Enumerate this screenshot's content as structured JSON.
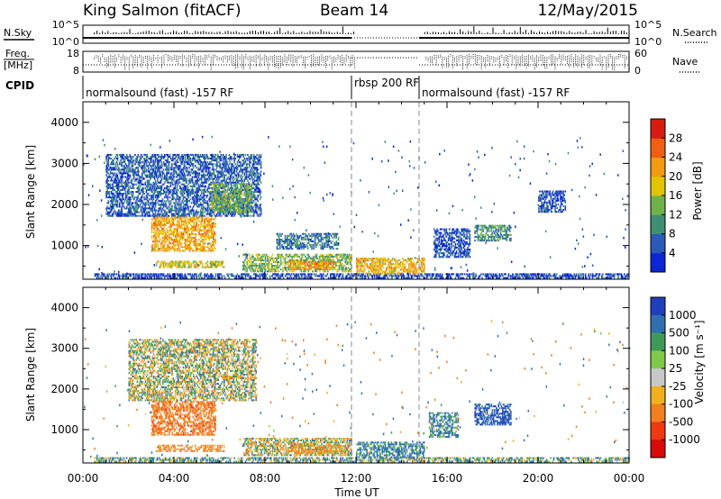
{
  "header": {
    "station": "King Salmon (fitACF)",
    "beam": "Beam 14",
    "date": "12/May/2015"
  },
  "strip_panels": {
    "nsky_label": "N.Sky",
    "nsearch_label": "N.Search",
    "freq_label_1": "Freq.",
    "freq_label_2": "[MHz]",
    "nave_label": "Nave",
    "cpid_label": "CPID",
    "nsky_ticks": [
      "10^5",
      "10^0"
    ],
    "nsearch_ticks": [
      "10^5",
      "10^0"
    ],
    "freq_ticks": [
      "18",
      "8"
    ],
    "nave_ticks": [
      "60",
      "0"
    ],
    "cpid_segments": [
      {
        "label": "normalsound (fast) -157 RF",
        "start_hour": 0,
        "end_hour": 12
      },
      {
        "label": "rbsp 200 RF",
        "start_hour": 12,
        "end_hour": 15
      },
      {
        "label": "normalsound (fast) -157 RF",
        "start_hour": 15,
        "end_hour": 24
      }
    ]
  },
  "colorbars": {
    "power": {
      "label": "Power [dB]",
      "ticks": [
        "4",
        "8",
        "12",
        "16",
        "20",
        "24",
        "28"
      ],
      "colors": [
        "#0b26d6",
        "#2a5bb8",
        "#3e8f73",
        "#6fb24a",
        "#e2c400",
        "#f29a10",
        "#ef5e12",
        "#d61d10"
      ]
    },
    "velocity": {
      "label": "Velocity [m s⁻¹]",
      "ticks": [
        "1000",
        "500",
        "100",
        "25",
        "-25",
        "-100",
        "-500",
        "-1000"
      ],
      "colors": [
        "#1f3fbf",
        "#2f6fb0",
        "#3f9a5a",
        "#7fc84a",
        "#c8c8c8",
        "#f2b020",
        "#f08020",
        "#ee3a10",
        "#d80a0a"
      ]
    }
  },
  "chart_data": [
    {
      "type": "heatmap",
      "title": "",
      "xlabel": "Time UT",
      "ylabel": "Slant Range [km]",
      "xlim": [
        0,
        24
      ],
      "ylim": [
        180,
        4500
      ],
      "x_tick_labels": [
        "00:00",
        "04:00",
        "08:00",
        "12:00",
        "16:00",
        "20:00",
        "00:00"
      ],
      "y_tick_labels": [
        "1000",
        "2000",
        "3000",
        "4000"
      ],
      "value_name": "Power [dB]",
      "value_range": [
        0,
        30
      ],
      "regions": [
        {
          "t": [
            0.5,
            24.0
          ],
          "r": [
            190,
            320
          ],
          "value": 4
        },
        {
          "t": [
            1.0,
            7.8
          ],
          "r": [
            1700,
            3200
          ],
          "value": 6
        },
        {
          "t": [
            5.6,
            7.4
          ],
          "r": [
            1800,
            2500
          ],
          "value": 13
        },
        {
          "t": [
            3.0,
            5.8
          ],
          "r": [
            850,
            1700
          ],
          "value": 21
        },
        {
          "t": [
            3.2,
            6.2
          ],
          "r": [
            450,
            620
          ],
          "value": 18
        },
        {
          "t": [
            7.0,
            11.8
          ],
          "r": [
            350,
            800
          ],
          "value": 14
        },
        {
          "t": [
            8.5,
            11.2
          ],
          "r": [
            900,
            1300
          ],
          "value": 8
        },
        {
          "t": [
            9.0,
            11.0
          ],
          "r": [
            400,
            600
          ],
          "value": 23
        },
        {
          "t": [
            12.0,
            15.0
          ],
          "r": [
            300,
            700
          ],
          "value": 20
        },
        {
          "t": [
            17.2,
            18.8
          ],
          "r": [
            1100,
            1500
          ],
          "value": 10
        },
        {
          "t": [
            15.4,
            17.0
          ],
          "r": [
            700,
            1400
          ],
          "value": 5
        },
        {
          "t": [
            20.0,
            21.2
          ],
          "r": [
            1800,
            2300
          ],
          "value": 5
        }
      ]
    },
    {
      "type": "heatmap",
      "title": "",
      "xlabel": "Time UT",
      "ylabel": "Slant Range [km]",
      "xlim": [
        0,
        24
      ],
      "ylim": [
        180,
        4500
      ],
      "x_tick_labels": [
        "00:00",
        "04:00",
        "08:00",
        "12:00",
        "16:00",
        "20:00",
        "00:00"
      ],
      "y_tick_labels": [
        "1000",
        "2000",
        "3000",
        "4000"
      ],
      "value_name": "Velocity [m s⁻¹]",
      "value_range": [
        -1000,
        1000
      ],
      "regions": [
        {
          "t": [
            0.5,
            24.0
          ],
          "r": [
            190,
            320
          ],
          "value": 60
        },
        {
          "t": [
            2.0,
            7.6
          ],
          "r": [
            1700,
            3200
          ],
          "value": 0
        },
        {
          "t": [
            3.0,
            5.8
          ],
          "r": [
            850,
            1700
          ],
          "value": -400
        },
        {
          "t": [
            3.2,
            6.2
          ],
          "r": [
            450,
            620
          ],
          "value": -150
        },
        {
          "t": [
            7.0,
            11.8
          ],
          "r": [
            350,
            800
          ],
          "value": -20
        },
        {
          "t": [
            9.0,
            11.5
          ],
          "r": [
            400,
            600
          ],
          "value": -120
        },
        {
          "t": [
            12.0,
            15.0
          ],
          "r": [
            300,
            700
          ],
          "value": 150
        },
        {
          "t": [
            17.2,
            18.8
          ],
          "r": [
            1100,
            1600
          ],
          "value": 500
        },
        {
          "t": [
            15.2,
            16.5
          ],
          "r": [
            800,
            1400
          ],
          "value": 120
        }
      ]
    }
  ]
}
